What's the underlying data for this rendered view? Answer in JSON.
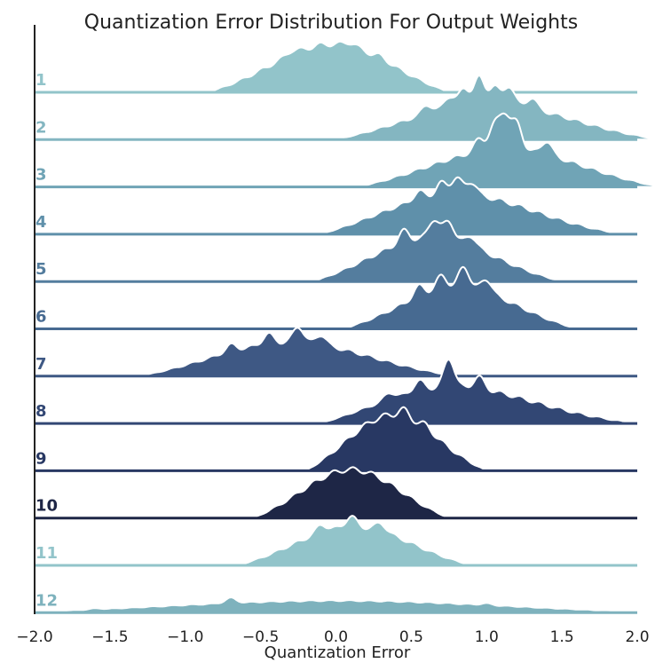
{
  "chart_data": {
    "type": "ridgeline",
    "title": "Quantization Error Distribution For Output Weights",
    "xlabel": "Quantization Error",
    "ylabel": "",
    "xlim": [
      -2.0,
      2.0
    ],
    "x_ticks": [
      -2.0,
      -1.5,
      -1.0,
      -0.5,
      0.0,
      0.5,
      1.0,
      1.5,
      2.0
    ],
    "x_tick_labels": [
      "−2.0",
      "−1.5",
      "−1.0",
      "−0.5",
      "0.0",
      "0.5",
      "1.0",
      "1.5",
      "2.0"
    ],
    "grid": false,
    "series": [
      {
        "name": "1",
        "color": "#92c4ca",
        "support": [
          -0.85,
          0.75
        ],
        "mode": [
          0.0,
          1.0
        ],
        "spikes": [
          [
            -0.3,
            0.1
          ],
          [
            0.1,
            0.1
          ],
          [
            0.3,
            0.08
          ]
        ]
      },
      {
        "name": "2",
        "color": "#84b6c1",
        "support": [
          0.0,
          2.15
        ],
        "mode": [
          0.95,
          0.75
        ],
        "spikes": [
          [
            0.6,
            0.35
          ],
          [
            0.75,
            0.4
          ],
          [
            0.85,
            0.55
          ],
          [
            0.95,
            0.85
          ],
          [
            1.05,
            0.55
          ],
          [
            1.15,
            0.6
          ],
          [
            1.3,
            0.35
          ]
        ]
      },
      {
        "name": "3",
        "color": "#70a4b6",
        "support": [
          0.15,
          2.15
        ],
        "mode": [
          1.1,
          0.78
        ],
        "spikes": [
          [
            0.95,
            0.4
          ],
          [
            1.05,
            0.7
          ],
          [
            1.12,
            1.0
          ],
          [
            1.2,
            0.8
          ],
          [
            1.4,
            0.45
          ]
        ]
      },
      {
        "name": "4",
        "color": "#5f90aa",
        "support": [
          -0.1,
          1.9
        ],
        "mode": [
          0.7,
          0.85
        ],
        "spikes": [
          [
            0.55,
            0.25
          ],
          [
            0.7,
            0.35
          ],
          [
            0.8,
            0.45
          ],
          [
            0.9,
            0.35
          ]
        ]
      },
      {
        "name": "5",
        "color": "#547d9e",
        "support": [
          -0.15,
          1.5
        ],
        "mode": [
          0.6,
          0.9
        ],
        "spikes": [
          [
            0.45,
            0.35
          ],
          [
            0.65,
            0.5
          ],
          [
            0.75,
            0.5
          ],
          [
            0.9,
            0.3
          ]
        ]
      },
      {
        "name": "6",
        "color": "#476a91",
        "support": [
          0.05,
          1.6
        ],
        "mode": [
          0.8,
          0.85
        ],
        "spikes": [
          [
            0.55,
            0.35
          ],
          [
            0.7,
            0.4
          ],
          [
            0.85,
            0.6
          ],
          [
            1.0,
            0.4
          ]
        ]
      },
      {
        "name": "7",
        "color": "#3e5884",
        "support": [
          -1.3,
          0.8
        ],
        "mode": [
          -0.35,
          0.7
        ],
        "spikes": [
          [
            -0.7,
            0.3
          ],
          [
            -0.45,
            0.35
          ],
          [
            -0.25,
            0.55
          ],
          [
            -0.1,
            0.35
          ]
        ]
      },
      {
        "name": "8",
        "color": "#324774",
        "support": [
          -0.1,
          2.0
        ],
        "mode": [
          0.6,
          0.8
        ],
        "spikes": [
          [
            0.35,
            0.3
          ],
          [
            0.55,
            0.35
          ],
          [
            0.75,
            0.9
          ],
          [
            0.95,
            0.35
          ]
        ]
      },
      {
        "name": "9",
        "color": "#283863",
        "support": [
          -0.2,
          1.0
        ],
        "mode": [
          0.35,
          1.15
        ],
        "spikes": [
          [
            0.45,
            0.15
          ],
          [
            0.6,
            0.1
          ]
        ]
      },
      {
        "name": "10",
        "color": "#1e2646",
        "support": [
          -0.55,
          0.75
        ],
        "mode": [
          0.1,
          1.0
        ],
        "spikes": []
      },
      {
        "name": "11",
        "color": "#92c4ca",
        "support": [
          -0.65,
          0.9
        ],
        "mode": [
          0.1,
          0.8
        ],
        "spikes": [
          [
            -0.1,
            0.25
          ],
          [
            0.1,
            0.3
          ],
          [
            0.3,
            0.25
          ]
        ]
      },
      {
        "name": "12",
        "color": "#7eb2bd",
        "support": [
          -2.2,
          2.2
        ],
        "mode": [
          0.0,
          0.25
        ],
        "spikes": [
          [
            -0.7,
            0.55
          ],
          [
            -1.6,
            0.2
          ],
          [
            1.0,
            0.2
          ]
        ]
      }
    ]
  }
}
